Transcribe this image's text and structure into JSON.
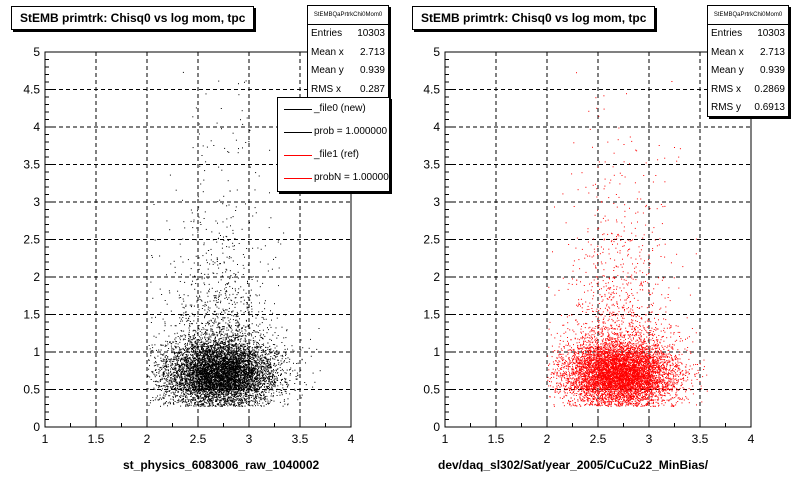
{
  "chart_data": [
    {
      "type": "scatter",
      "title": "StEMB primtrk: Chisq0 vs log mom, tpc",
      "xlabel": "st_physics_6083006_raw_1040002",
      "ylabel": "",
      "xlim": [
        1,
        4
      ],
      "ylim": [
        0,
        5
      ],
      "x_ticks": [
        "1",
        "1.5",
        "2",
        "2.5",
        "3",
        "3.5",
        "4"
      ],
      "y_ticks": [
        "0",
        "0.5",
        "1",
        "1.5",
        "2",
        "2.5",
        "3",
        "3.5",
        "4",
        "4.5",
        "5"
      ],
      "grid": true,
      "marker_color": "#000000",
      "entries": 10303,
      "mean_x": 2.713,
      "mean_y": 0.939,
      "rms_x": 0.287,
      "stats": {
        "header": "StEMBQaPrtrkChi0Mom0",
        "rows": [
          {
            "label": "Entries",
            "value": "10303"
          },
          {
            "label": "Mean x",
            "value": "2.713"
          },
          {
            "label": "Mean y",
            "value": "0.939"
          },
          {
            "label": "RMS x",
            "value": "0.287"
          }
        ]
      },
      "legend": {
        "placement": "top-right",
        "entries": [
          {
            "label": "_file0 (new)",
            "color": "#000000"
          },
          {
            "label": "prob = 1.000000",
            "color": "#000000"
          },
          {
            "label": "_file1 (ref)",
            "color": "#ff0000"
          },
          {
            "label": "probN = 1.000000",
            "color": "#ff0000"
          }
        ]
      }
    },
    {
      "type": "scatter",
      "title": "StEMB primtrk: Chisq0 vs log mom, tpc",
      "xlabel": "dev/daq_sl302/Sat/year_2005/CuCu22_MinBias/",
      "ylabel": "",
      "xlim": [
        1,
        4
      ],
      "ylim": [
        0,
        5
      ],
      "x_ticks": [
        "1",
        "1.5",
        "2",
        "2.5",
        "3",
        "3.5",
        "4"
      ],
      "y_ticks": [
        "0",
        "0.5",
        "1",
        "1.5",
        "2",
        "2.5",
        "3",
        "3.5",
        "4",
        "4.5",
        "5"
      ],
      "grid": true,
      "marker_color": "#ff0000",
      "entries": 10303,
      "mean_x": 2.713,
      "mean_y": 0.939,
      "rms_x": 0.2869,
      "rms_y": 0.6913,
      "stats": {
        "header": "StEMBQaPrtrkChi0Mom0",
        "rows": [
          {
            "label": "Entries",
            "value": "10303"
          },
          {
            "label": "Mean x",
            "value": "2.713"
          },
          {
            "label": "Mean y",
            "value": "0.939"
          },
          {
            "label": "RMS x",
            "value": "0.2869"
          },
          {
            "label": "RMS y",
            "value": "0.6913"
          }
        ]
      }
    }
  ]
}
